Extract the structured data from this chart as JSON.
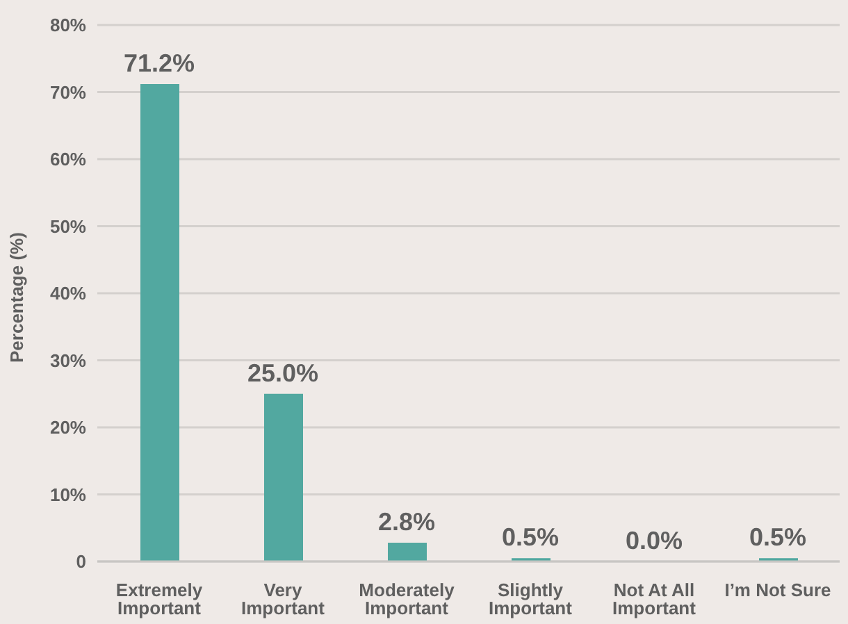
{
  "chart_data": {
    "type": "bar",
    "ylabel": "Percentage (%)",
    "categories": [
      "Extremely Important",
      "Very Important",
      "Moderately Important",
      "Slightly Important",
      "Not At All Important",
      "I’m Not Sure"
    ],
    "values": [
      71.2,
      25.0,
      2.8,
      0.5,
      0.0,
      0.5
    ],
    "value_labels": [
      "71.2%",
      "25.0%",
      "2.8%",
      "0.5%",
      "0.0%",
      "0.5%"
    ],
    "color": "#52a8a0",
    "ylim": [
      0,
      80
    ],
    "yticks": [
      0,
      {
        "value": 10,
        "label": "10%"
      },
      {
        "value": 20,
        "label": "20%"
      },
      {
        "value": 30,
        "label": "30%"
      },
      {
        "value": 40,
        "label": "40%"
      },
      {
        "value": 50,
        "label": "50%"
      },
      {
        "value": 60,
        "label": "60%"
      },
      {
        "value": 70,
        "label": "70%"
      },
      {
        "value": 80,
        "label": "80%"
      }
    ],
    "grid": "y"
  }
}
